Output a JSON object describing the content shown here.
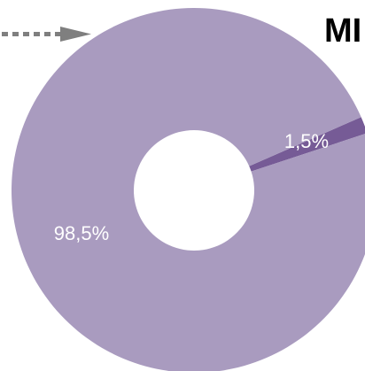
{
  "title_fragment": "MI",
  "chart_data": {
    "type": "pie",
    "variant": "donut",
    "title": "",
    "categories": [
      "",
      ""
    ],
    "values": [
      98.5,
      1.5
    ],
    "data_labels": [
      "98,5%",
      "1,5%"
    ],
    "colors": [
      "#a99bbf",
      "#765b96"
    ],
    "label_color": "#ffffff"
  },
  "pointer_arrow": {
    "style": "dotted",
    "direction": "right",
    "color": "#7f7f7f"
  }
}
